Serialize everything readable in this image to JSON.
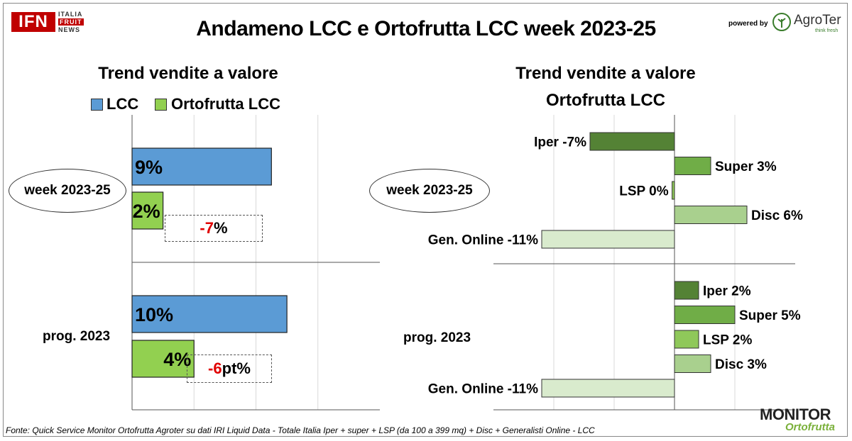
{
  "header": {
    "logo_left": {
      "big": "IFN",
      "line1": "ITALIA",
      "line2": "FRUIT",
      "line3": "NEWS"
    },
    "title": "Andameno LCC e Ortofrutta LCC week 2023-25",
    "powered_by": "powered by",
    "agroter": {
      "name": "AgroTer",
      "tagline": "think fresh"
    }
  },
  "colors": {
    "lcc": "#5b9bd5",
    "ortofrutta": "#92d050",
    "iper": "#548235",
    "super": "#70ad47",
    "lsp": "#8fc85a",
    "disc": "#a9d08e",
    "online": "#d9ebcd",
    "negative": "#e00000"
  },
  "chart_data": [
    {
      "type": "bar",
      "orientation": "horizontal",
      "title": "Trend vendite a valore",
      "legend": {
        "position": "top",
        "entries": [
          "LCC",
          "Ortofrutta LCC"
        ]
      },
      "categories": [
        "week 2023-25",
        "prog. 2023"
      ],
      "series": [
        {
          "name": "LCC",
          "values": [
            9,
            10
          ],
          "labels": [
            "9%",
            "10%"
          ]
        },
        {
          "name": "Ortofrutta LCC",
          "values": [
            2,
            4
          ],
          "labels": [
            "2%",
            "4%"
          ]
        }
      ],
      "differences": [
        {
          "sign": "-",
          "num": "7",
          "unit": "%"
        },
        {
          "sign": "-",
          "num": "6",
          "unit": "pt%"
        }
      ],
      "xlim": [
        0,
        16
      ],
      "grid": true
    },
    {
      "type": "bar",
      "orientation": "horizontal",
      "title_line1": "Trend vendite a valore",
      "title_line2": "Ortofrutta LCC",
      "categories": [
        "week 2023-25",
        "prog. 2023"
      ],
      "groups": [
        {
          "category": "week 2023-25",
          "bars": [
            {
              "channel": "Iper",
              "value": -7,
              "label": "Iper -7%"
            },
            {
              "channel": "Super",
              "value": 3,
              "label": "Super 3%"
            },
            {
              "channel": "LSP",
              "value": -0.2,
              "label": "LSP 0%"
            },
            {
              "channel": "Disc",
              "value": 6,
              "label": "Disc 6%"
            },
            {
              "channel": "Gen. Online",
              "value": -11,
              "label": "Gen. Online -11%"
            }
          ]
        },
        {
          "category": "prog. 2023",
          "bars": [
            {
              "channel": "Iper",
              "value": 2,
              "label": "Iper 2%"
            },
            {
              "channel": "Super",
              "value": 5,
              "label": "Super 5%"
            },
            {
              "channel": "LSP",
              "value": 2,
              "label": "LSP 2%"
            },
            {
              "channel": "Disc",
              "value": 3,
              "label": "Disc 3%"
            },
            {
              "channel": "Gen. Online",
              "value": -11,
              "label": "Gen. Online -11%"
            }
          ]
        }
      ],
      "xlim": [
        -15,
        10
      ],
      "grid": true
    }
  ],
  "footer": {
    "source": "Fonte: Quick Service Monitor Ortofrutta Agroter su dati IRI Liquid Data - Totale Italia Iper + super + LSP (da 100 a 399 mq) + Disc + Generalisti Online - LCC",
    "logo_right": {
      "line1": "MONITOR",
      "line2": "Ortofrutta"
    }
  }
}
